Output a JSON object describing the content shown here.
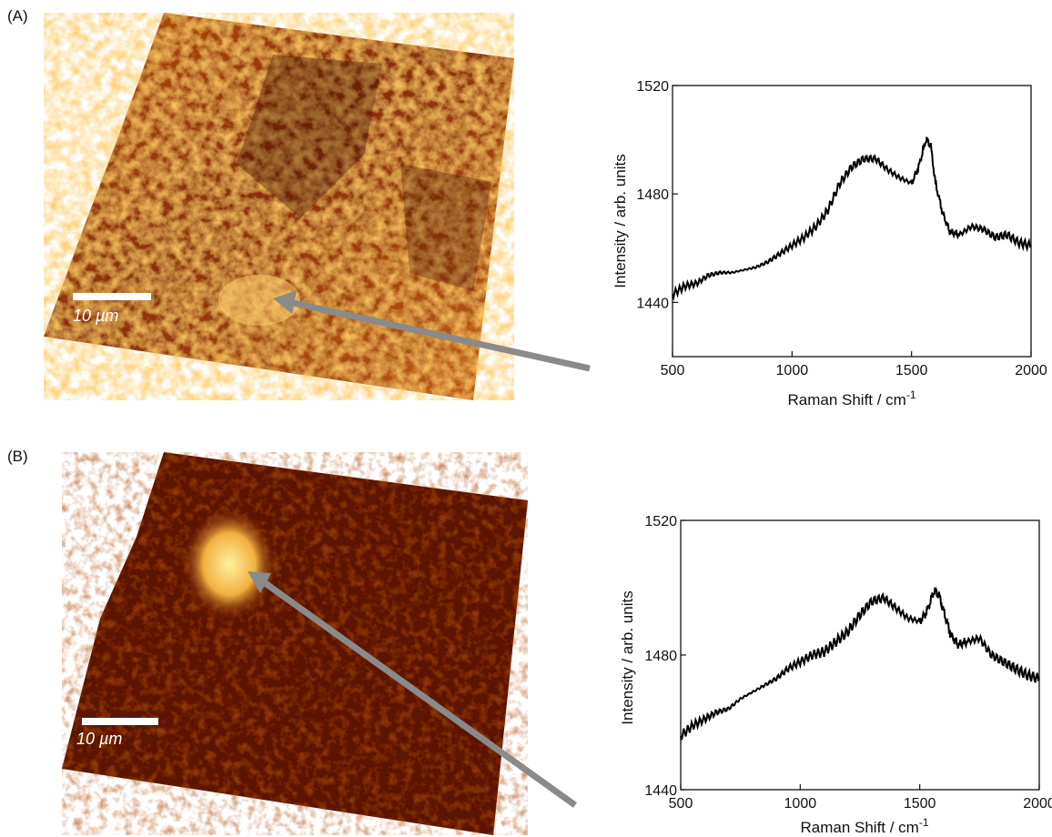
{
  "panels": [
    {
      "label": "(A)",
      "map": {
        "scale_bar": "10 µm"
      },
      "colors": {
        "map_dark": "#3a0800",
        "map_mid": "#a63a0a",
        "map_bright": "#ffd070",
        "arrow": "#8a8a8a"
      }
    },
    {
      "label": "(B)",
      "map": {
        "scale_bar": "10 µm"
      },
      "colors": {
        "map_dark": "#2e0600",
        "map_mid": "#7a2206",
        "map_bright": "#ffe07a",
        "arrow": "#8a8a8a"
      }
    }
  ],
  "chart_data": [
    {
      "type": "line",
      "xlabel": "Raman Shift / cm",
      "xlabel_superscript": "-1",
      "ylabel": "Intensity / arb. units",
      "xlim": [
        500,
        2000
      ],
      "ylim": [
        1420,
        1520
      ],
      "xticks": [
        500,
        1000,
        1500,
        2000
      ],
      "yticks": [
        1440,
        1480,
        1520
      ],
      "x": [
        500,
        550,
        600,
        650,
        700,
        750,
        800,
        850,
        900,
        950,
        1000,
        1050,
        1100,
        1150,
        1200,
        1250,
        1300,
        1350,
        1400,
        1450,
        1500,
        1530,
        1560,
        1580,
        1600,
        1630,
        1660,
        1700,
        1750,
        1800,
        1850,
        1900,
        1950,
        2000
      ],
      "y": [
        1443,
        1446,
        1447,
        1450,
        1451,
        1451,
        1452,
        1453,
        1455,
        1458,
        1461,
        1464,
        1468,
        1474,
        1484,
        1490,
        1493,
        1493,
        1489,
        1486,
        1484,
        1490,
        1500,
        1498,
        1484,
        1473,
        1466,
        1465,
        1468,
        1467,
        1464,
        1465,
        1462,
        1461
      ],
      "grid": false
    },
    {
      "type": "line",
      "xlabel": "Raman Shift / cm",
      "xlabel_superscript": "-1",
      "ylabel": "Intensity / arb. units",
      "xlim": [
        500,
        2000
      ],
      "ylim": [
        1440,
        1520
      ],
      "xticks": [
        500,
        1000,
        1500,
        2000
      ],
      "yticks": [
        1440,
        1480,
        1520
      ],
      "x": [
        500,
        550,
        600,
        650,
        700,
        750,
        800,
        850,
        900,
        950,
        1000,
        1050,
        1100,
        1150,
        1200,
        1250,
        1300,
        1350,
        1400,
        1450,
        1500,
        1530,
        1560,
        1580,
        1600,
        1630,
        1660,
        1700,
        1750,
        1800,
        1850,
        1900,
        1950,
        2000
      ],
      "y": [
        1456,
        1459,
        1461,
        1463,
        1464,
        1467,
        1469,
        1471,
        1473,
        1476,
        1478,
        1480,
        1481,
        1484,
        1487,
        1492,
        1496,
        1497,
        1494,
        1491,
        1490,
        1493,
        1499,
        1498,
        1493,
        1486,
        1483,
        1484,
        1485,
        1480,
        1478,
        1476,
        1474,
        1473
      ],
      "grid": false
    }
  ]
}
